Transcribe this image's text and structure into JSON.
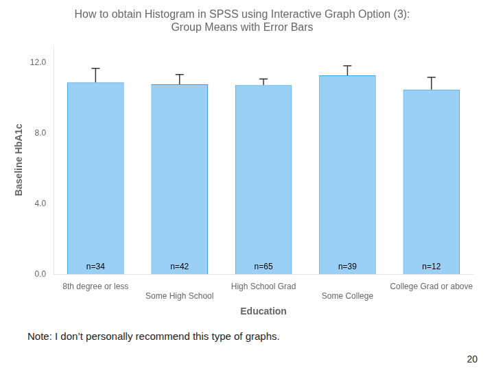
{
  "chart_data": {
    "type": "bar",
    "title": "How to obtain Histogram in SPSS using Interactive Graph Option (3):\nGroup Means with Error Bars",
    "categories": [
      "8th degree or less",
      "Some High School",
      "High School Grad",
      "Some College",
      "College Grad or above"
    ],
    "values": [
      10.9,
      10.8,
      10.75,
      11.3,
      10.5
    ],
    "errors": [
      0.8,
      0.55,
      0.35,
      0.55,
      0.7
    ],
    "bar_labels": [
      "n=34",
      "n=42",
      "n=65",
      "n=39",
      "n=12"
    ],
    "ylabel": "Baseline HbA1c",
    "xlabel": "Education",
    "ylim": [
      0,
      13.0
    ],
    "yticks": [
      {
        "value": 0.0,
        "label": "0.0"
      },
      {
        "value": 4.0,
        "label": "4.0"
      },
      {
        "value": 8.0,
        "label": "8.0"
      },
      {
        "value": 12.0,
        "label": "12.0"
      }
    ],
    "grid": false,
    "note": "Note: I don’t personally recommend this type of graphs.",
    "page_number": "20"
  }
}
